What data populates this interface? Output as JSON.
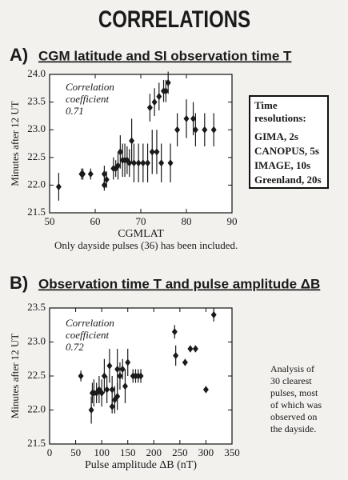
{
  "title": "CORRELATIONS",
  "chart_data": [
    {
      "type": "scatter",
      "label": "A)",
      "title": "CGM latitude and SI observation time T",
      "xlabel": "CGMLAT",
      "ylabel": "Minutes after 12 UT",
      "annotation": [
        "Correlation",
        "coefficient",
        "0.71"
      ],
      "note": "Only dayside pulses (36) has been included.",
      "color": "#1a1a1a",
      "xlim": [
        50,
        90
      ],
      "xticks": [
        50,
        60,
        70,
        80,
        90
      ],
      "ylim": [
        21.5,
        24.0
      ],
      "yticks": [
        21.5,
        {
          "value": 22,
          "label": "22.0"
        },
        22.5,
        {
          "value": 23,
          "label": "23.0"
        },
        23.5,
        {
          "value": 24,
          "label": "24.0"
        }
      ],
      "x": [
        52,
        57,
        57.3,
        59,
        62,
        62.5,
        62,
        64,
        64.5,
        65,
        65.5,
        66,
        66.5,
        67,
        67.5,
        68,
        68.5,
        69.5,
        70.5,
        71.5,
        72,
        72.5,
        73,
        73.5,
        74,
        74.5,
        75,
        75.5,
        76,
        76.5,
        78,
        80,
        81.5,
        82,
        84,
        86
      ],
      "y": [
        21.97,
        22.2,
        22.2,
        22.2,
        22.0,
        22.1,
        22.2,
        22.3,
        22.3,
        22.35,
        22.6,
        22.45,
        22.45,
        22.45,
        22.4,
        22.8,
        22.4,
        22.4,
        22.4,
        22.4,
        23.4,
        22.6,
        23.5,
        22.6,
        23.6,
        22.4,
        23.7,
        23.7,
        23.85,
        22.4,
        23.0,
        23.2,
        23.2,
        23.0,
        23.0,
        23.0
      ],
      "errors": [
        0.25,
        0.1,
        0.1,
        0.1,
        0.1,
        0.15,
        0.15,
        0.2,
        0.15,
        0.25,
        0.3,
        0.3,
        0.3,
        0.25,
        0.25,
        0.4,
        0.35,
        0.35,
        0.35,
        0.35,
        0.25,
        0.4,
        0.25,
        0.4,
        0.25,
        0.35,
        0.2,
        0.2,
        0.2,
        0.35,
        0.3,
        0.35,
        0.3,
        0.3,
        0.3,
        0.3
      ]
    },
    {
      "type": "scatter",
      "label": "B)",
      "title": "Observation time T and pulse amplitude ΔB",
      "xlabel": "Pulse amplitude  ΔB (nT)",
      "ylabel": "Minutes after 12 UT",
      "annotation": [
        "Correlation",
        "coefficient",
        "0.72"
      ],
      "note": [
        "Analysis of",
        "30 clearest",
        "pulses, most",
        "of which was",
        "observed on",
        "the dayside."
      ],
      "color": "#1a1a1a",
      "xlim": [
        0,
        350
      ],
      "xticks": [
        0,
        50,
        100,
        150,
        200,
        250,
        300,
        350
      ],
      "ylim": [
        21.5,
        23.5
      ],
      "yticks": [
        21.5,
        {
          "value": 22,
          "label": "22.0"
        },
        22.5,
        {
          "value": 23,
          "label": "23.0"
        },
        23.5
      ],
      "x": [
        60,
        80,
        82,
        85,
        90,
        95,
        100,
        105,
        110,
        115,
        120,
        120,
        125,
        130,
        130,
        135,
        140,
        145,
        150,
        160,
        165,
        170,
        175,
        240,
        242,
        260,
        270,
        280,
        300,
        315
      ],
      "y": [
        22.5,
        22.0,
        22.25,
        22.25,
        22.25,
        22.3,
        22.25,
        22.5,
        22.3,
        22.65,
        22.3,
        22.05,
        22.15,
        22.2,
        22.6,
        22.5,
        22.6,
        22.35,
        22.7,
        22.5,
        22.5,
        22.5,
        22.5,
        23.15,
        22.8,
        22.7,
        22.9,
        22.9,
        22.3,
        23.4
      ],
      "errors": [
        0.08,
        0.2,
        0.15,
        0.2,
        0.15,
        0.2,
        0.2,
        0.25,
        0.2,
        0.25,
        0.2,
        0.1,
        0.2,
        0.2,
        0.3,
        0.2,
        0.15,
        0.25,
        0.2,
        0.1,
        0.1,
        0.1,
        0.1,
        0.1,
        0.15,
        0.05,
        0.05,
        0.05,
        0.05,
        0.1
      ]
    }
  ],
  "time_resolutions": {
    "title": [
      "Time",
      "resolutions:"
    ],
    "items": [
      "GIMA, 2s",
      "CANOPUS, 5s",
      "IMAGE, 10s",
      "Greenland, 20s"
    ]
  }
}
